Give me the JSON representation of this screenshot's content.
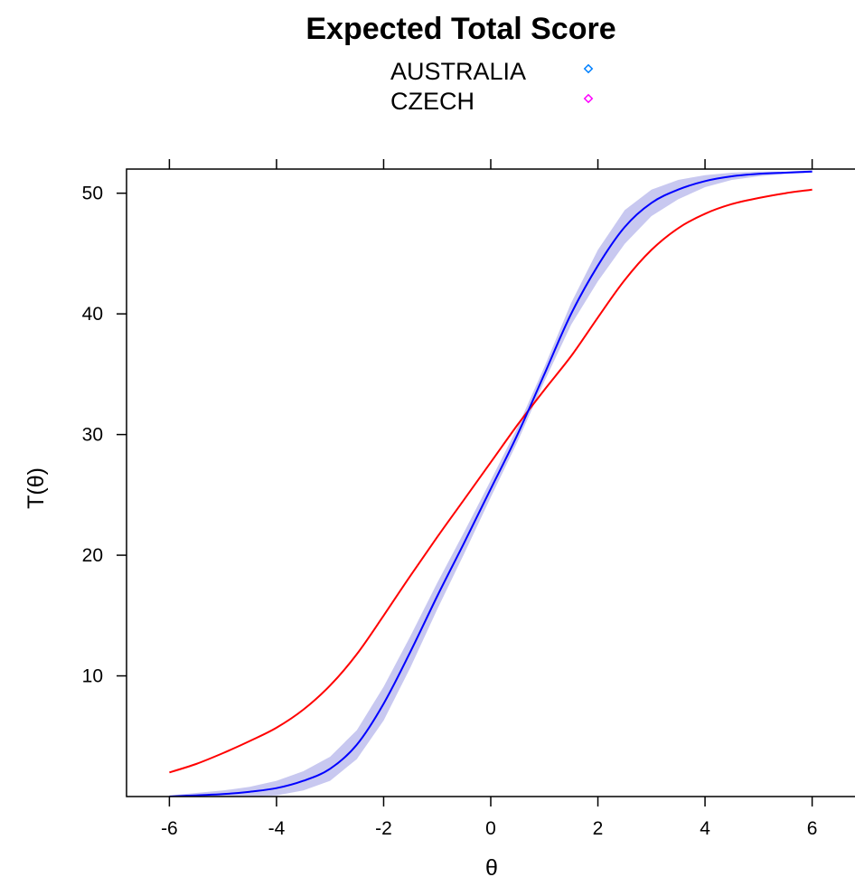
{
  "chart_data": {
    "type": "line",
    "title": "Expected Total Score",
    "xlabel": "θ",
    "ylabel": "T(θ)",
    "xlim": [
      -6.8,
      6.8
    ],
    "ylim": [
      0,
      52
    ],
    "x_ticks": [
      -6,
      -4,
      -2,
      0,
      2,
      4,
      6
    ],
    "y_ticks": [
      10,
      20,
      30,
      40,
      50
    ],
    "legend": {
      "position": "top-center",
      "entries": [
        {
          "label": "AUSTRALIA",
          "marker": "diamond",
          "color": "#0080ff"
        },
        {
          "label": "CZECH",
          "marker": "diamond",
          "color": "#ff00ff"
        }
      ]
    },
    "x": [
      -6,
      -5.5,
      -5,
      -4.5,
      -4,
      -3.5,
      -3,
      -2.5,
      -2,
      -1.5,
      -1,
      -0.5,
      0,
      0.5,
      1,
      1.5,
      2,
      2.5,
      3,
      3.5,
      4,
      4.5,
      5,
      5.5,
      6
    ],
    "series": [
      {
        "color": "#0000ff",
        "band_color": "#c8c8f0",
        "values": [
          0.0,
          0.1,
          0.2,
          0.4,
          0.7,
          1.3,
          2.3,
          4.3,
          7.7,
          12.0,
          16.6,
          21.0,
          25.5,
          30.0,
          35.0,
          40.0,
          44.0,
          47.2,
          49.2,
          50.3,
          51.0,
          51.4,
          51.6,
          51.7,
          51.8
        ],
        "band_width": [
          0.1,
          0.2,
          0.3,
          0.4,
          0.6,
          0.8,
          1.0,
          1.2,
          1.4,
          1.3,
          1.1,
          0.9,
          0.7,
          0.6,
          0.6,
          0.9,
          1.3,
          1.4,
          1.1,
          0.8,
          0.5,
          0.3,
          0.2,
          0.1,
          0.1
        ]
      },
      {
        "color": "#ff0000",
        "values": [
          2.0,
          2.7,
          3.6,
          4.6,
          5.7,
          7.2,
          9.2,
          11.8,
          15.0,
          18.3,
          21.5,
          24.6,
          27.7,
          30.8,
          33.7,
          36.5,
          39.7,
          42.8,
          45.3,
          47.1,
          48.3,
          49.1,
          49.6,
          50.0,
          50.3
        ]
      }
    ]
  }
}
